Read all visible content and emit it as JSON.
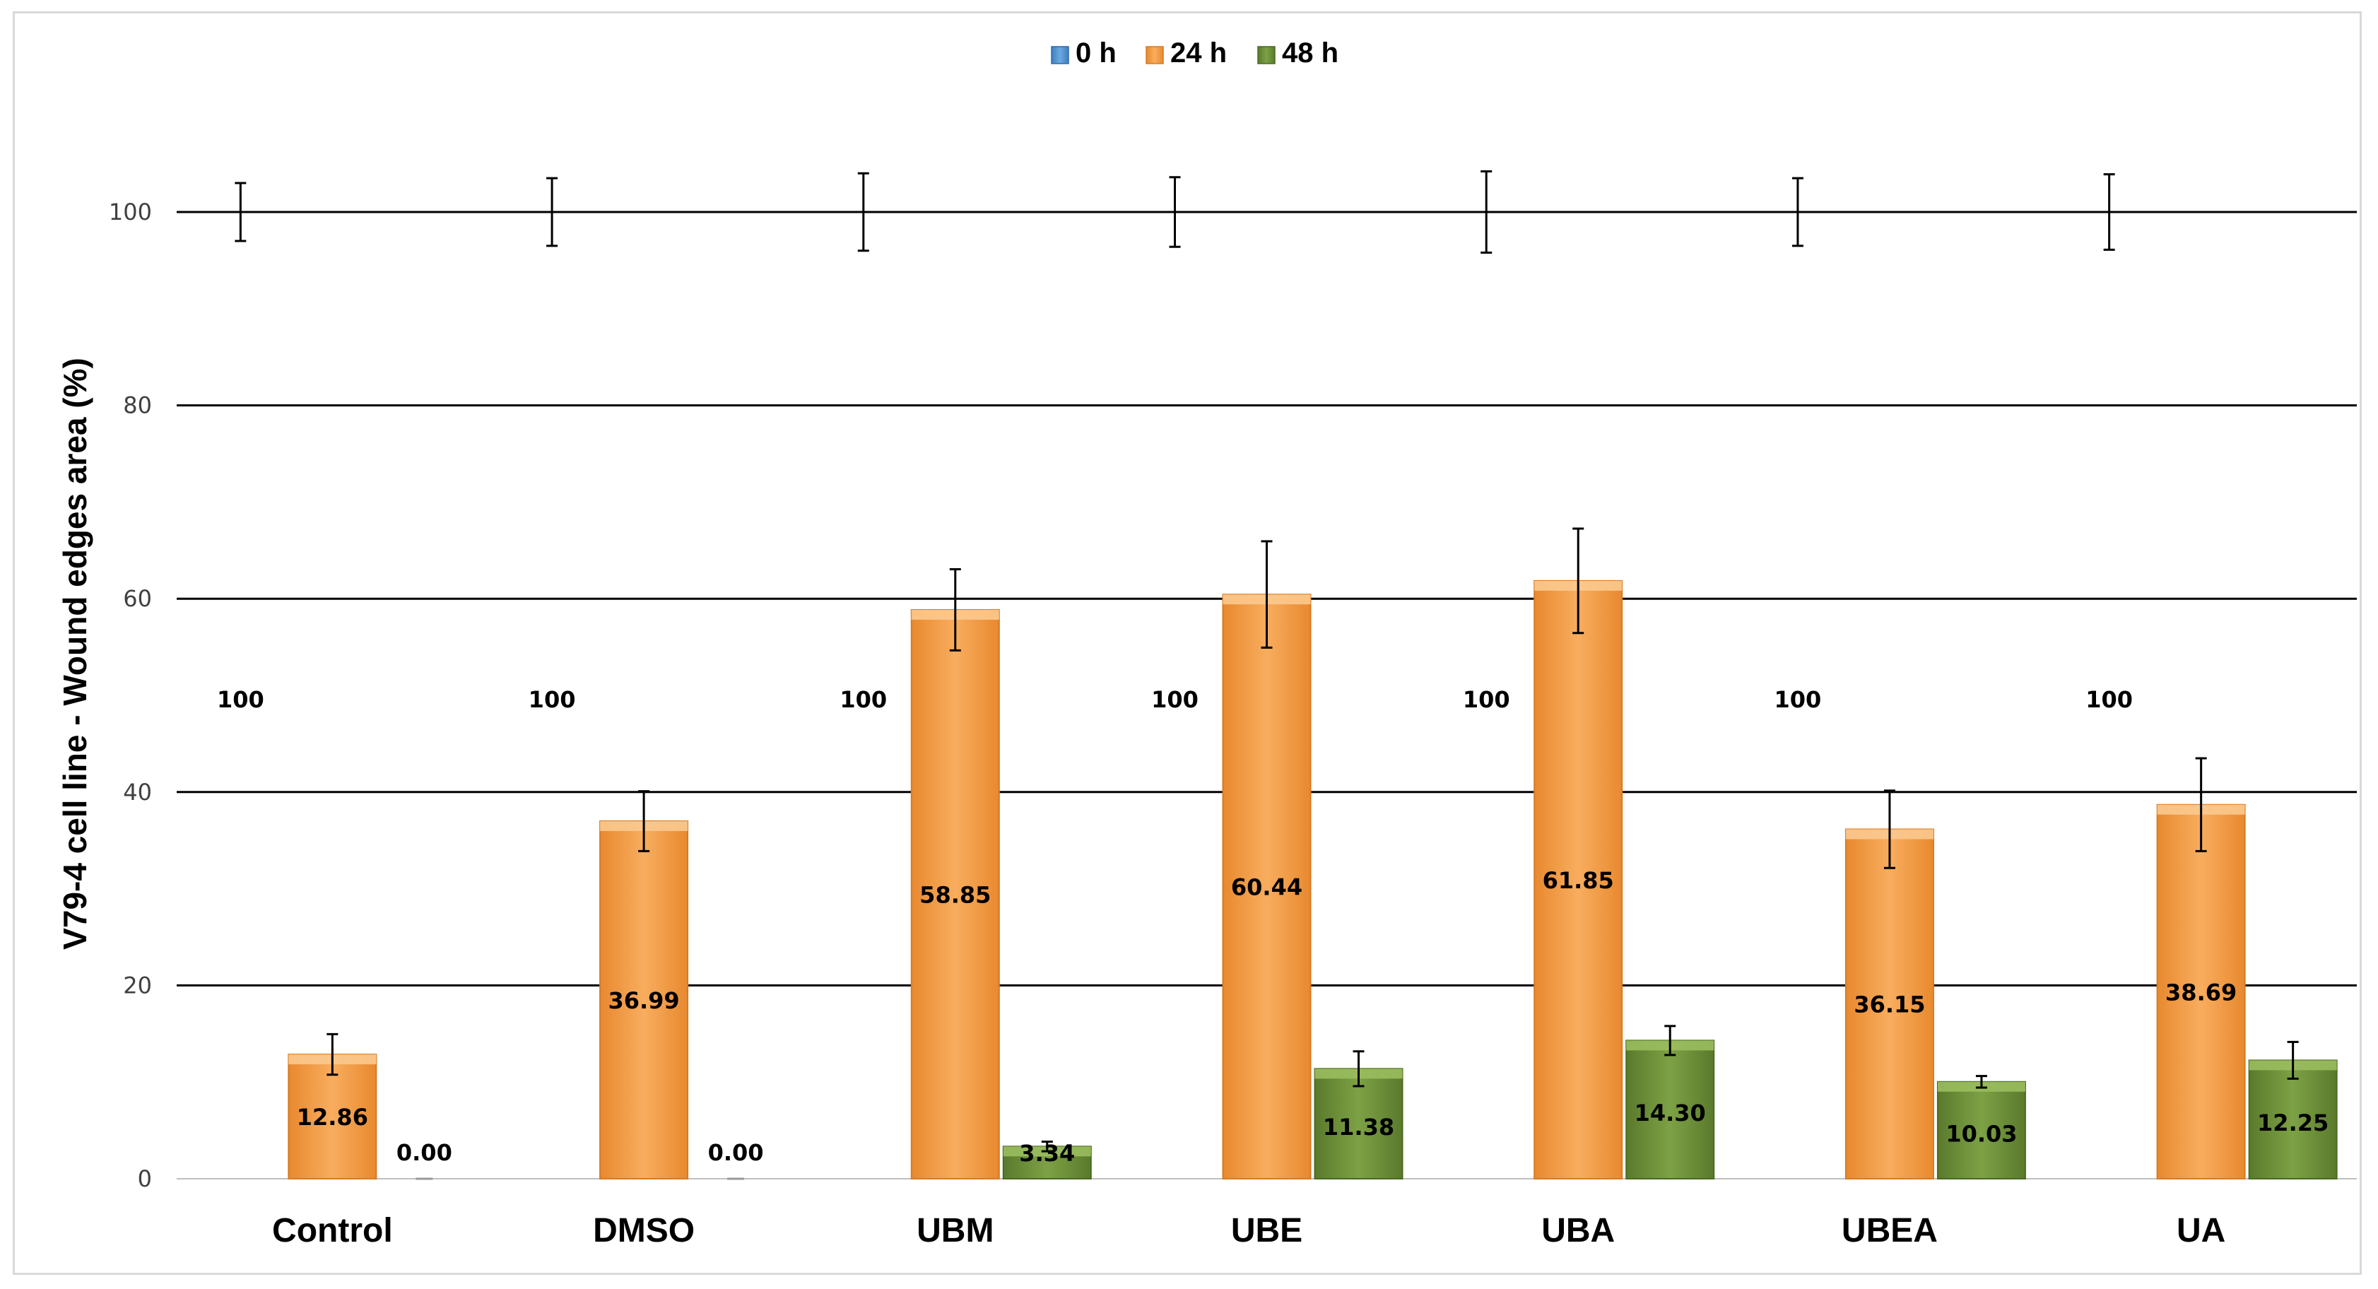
{
  "chart_data": {
    "type": "bar",
    "title": "",
    "xlabel": "",
    "ylabel": "V79-4 cell line - Wound edges area (%)",
    "ylim": [
      0,
      100
    ],
    "yticks": [
      0,
      20,
      40,
      60,
      80,
      100
    ],
    "grid": true,
    "legend_position": "top-center",
    "categories": [
      "Control",
      "DMSO",
      "UBM",
      "UBE",
      "UBA",
      "UBEA",
      "UA"
    ],
    "series": [
      {
        "name": "0 h",
        "color": "#5b9bd5",
        "values": [
          100,
          100,
          100,
          100,
          100,
          100,
          100
        ],
        "labels": [
          "100",
          "100",
          "100",
          "100",
          "100",
          "100",
          "100"
        ],
        "errors": [
          3.0,
          3.5,
          4.0,
          3.6,
          4.2,
          3.5,
          3.9
        ]
      },
      {
        "name": "24 h",
        "color": "#f4a44e",
        "values": [
          12.86,
          36.99,
          58.85,
          60.44,
          61.85,
          36.15,
          38.69
        ],
        "labels": [
          "12.86",
          "36.99",
          "58.85",
          "60.44",
          "61.85",
          "36.15",
          "38.69"
        ],
        "errors": [
          2.1,
          3.1,
          4.2,
          5.5,
          5.4,
          4.0,
          4.8
        ]
      },
      {
        "name": "48 h",
        "color": "#70913a",
        "values": [
          0.0,
          0.0,
          3.34,
          11.38,
          14.3,
          10.03,
          12.25
        ],
        "labels": [
          "0.00",
          "0.00",
          "3.34",
          "11.38",
          "14.30",
          "10.03",
          "12.25"
        ],
        "errors": [
          0.0,
          0.0,
          0.5,
          1.8,
          1.5,
          0.6,
          1.9
        ]
      }
    ]
  }
}
